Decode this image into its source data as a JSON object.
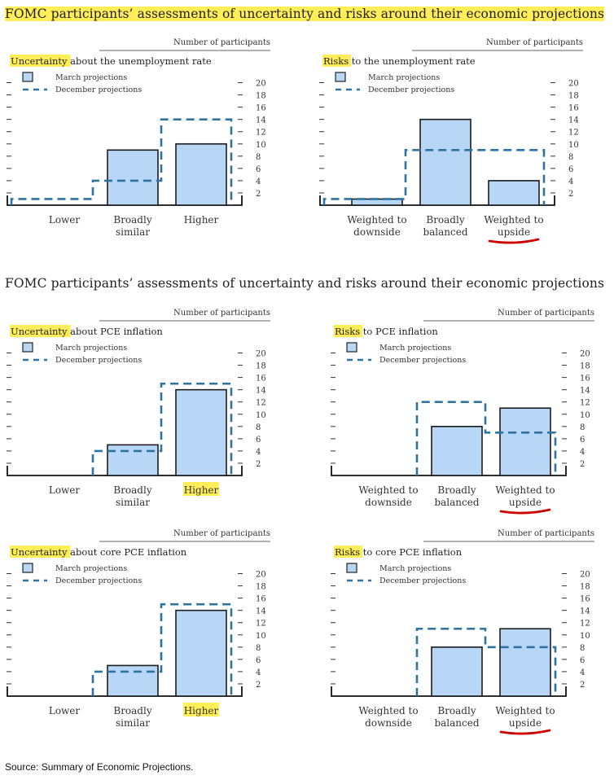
{
  "titles": [
    "FOMC participants’ assessments of uncertainty and risks around their economic projections",
    "FOMC participants’ assessments of uncertainty and risks around their economic projections"
  ],
  "source": "Source: Summary of Economic Projections.",
  "colors": {
    "highlight": "#ffee58",
    "bar_fill": "#b8d7f7",
    "dashed_line": "#2d74a3",
    "underline": "#cc0000"
  },
  "chart_data": [
    {
      "type": "bar",
      "title": "Uncertainty about the unemployment rate",
      "highlight_word": "Uncertainty",
      "ylabel": "Number of participants",
      "categories": [
        "Lower",
        "Broadly similar",
        "Higher"
      ],
      "yticks": [
        2,
        4,
        6,
        8,
        10,
        12,
        14,
        16,
        18,
        20
      ],
      "ylim": [
        0,
        21
      ],
      "legend_position": "top-left",
      "highlighted_category": "",
      "underlined_category": "",
      "series": [
        {
          "name": "March projections",
          "values": [
            0,
            9,
            10
          ]
        },
        {
          "name": "December projections",
          "values": [
            1,
            4,
            14
          ]
        }
      ]
    },
    {
      "type": "bar",
      "title": "Risks to the unemployment rate",
      "highlight_word": "Risks",
      "ylabel": "Number of participants",
      "categories": [
        "Weighted to downside",
        "Broadly balanced",
        "Weighted to upside"
      ],
      "yticks": [
        2,
        4,
        6,
        8,
        10,
        12,
        14,
        16,
        18,
        20
      ],
      "ylim": [
        0,
        21
      ],
      "legend_position": "top-left",
      "highlighted_category": "",
      "underlined_category": "Weighted to upside",
      "series": [
        {
          "name": "March projections",
          "values": [
            1,
            14,
            4
          ]
        },
        {
          "name": "December projections",
          "values": [
            1,
            9,
            9
          ]
        }
      ]
    },
    {
      "type": "bar",
      "title": "Uncertainty about PCE inflation",
      "highlight_word": "Uncertainty",
      "ylabel": "Number of participants",
      "categories": [
        "Lower",
        "Broadly similar",
        "Higher"
      ],
      "yticks": [
        2,
        4,
        6,
        8,
        10,
        12,
        14,
        16,
        18,
        20
      ],
      "ylim": [
        0,
        21
      ],
      "legend_position": "top-left",
      "highlighted_category": "Higher",
      "underlined_category": "",
      "series": [
        {
          "name": "March projections",
          "values": [
            0,
            5,
            14
          ]
        },
        {
          "name": "December projections",
          "values": [
            0,
            4,
            15
          ]
        }
      ]
    },
    {
      "type": "bar",
      "title": "Risks to PCE inflation",
      "highlight_word": "Risks",
      "ylabel": "Number of participants",
      "categories": [
        "Weighted to downside",
        "Broadly balanced",
        "Weighted to upside"
      ],
      "yticks": [
        2,
        4,
        6,
        8,
        10,
        12,
        14,
        16,
        18,
        20
      ],
      "ylim": [
        0,
        21
      ],
      "legend_position": "top-left",
      "highlighted_category": "",
      "underlined_category": "Weighted to upside",
      "series": [
        {
          "name": "March projections",
          "values": [
            0,
            8,
            11
          ]
        },
        {
          "name": "December projections",
          "values": [
            0,
            12,
            7
          ]
        }
      ]
    },
    {
      "type": "bar",
      "title": "Uncertainty about core PCE inflation",
      "highlight_word": "Uncertainty",
      "ylabel": "Number of participants",
      "categories": [
        "Lower",
        "Broadly similar",
        "Higher"
      ],
      "yticks": [
        2,
        4,
        6,
        8,
        10,
        12,
        14,
        16,
        18,
        20
      ],
      "ylim": [
        0,
        21
      ],
      "legend_position": "top-left",
      "highlighted_category": "Higher",
      "underlined_category": "",
      "series": [
        {
          "name": "March projections",
          "values": [
            0,
            5,
            14
          ]
        },
        {
          "name": "December projections",
          "values": [
            0,
            4,
            15
          ]
        }
      ]
    },
    {
      "type": "bar",
      "title": "Risks to core PCE inflation",
      "highlight_word": "Risks",
      "ylabel": "Number of participants",
      "categories": [
        "Weighted to downside",
        "Broadly balanced",
        "Weighted to upside"
      ],
      "yticks": [
        2,
        4,
        6,
        8,
        10,
        12,
        14,
        16,
        18,
        20
      ],
      "ylim": [
        0,
        21
      ],
      "legend_position": "top-left",
      "highlighted_category": "",
      "underlined_category": "Weighted to upside",
      "series": [
        {
          "name": "March projections",
          "values": [
            0,
            8,
            11
          ]
        },
        {
          "name": "December projections",
          "values": [
            0,
            11,
            8
          ]
        }
      ]
    }
  ]
}
